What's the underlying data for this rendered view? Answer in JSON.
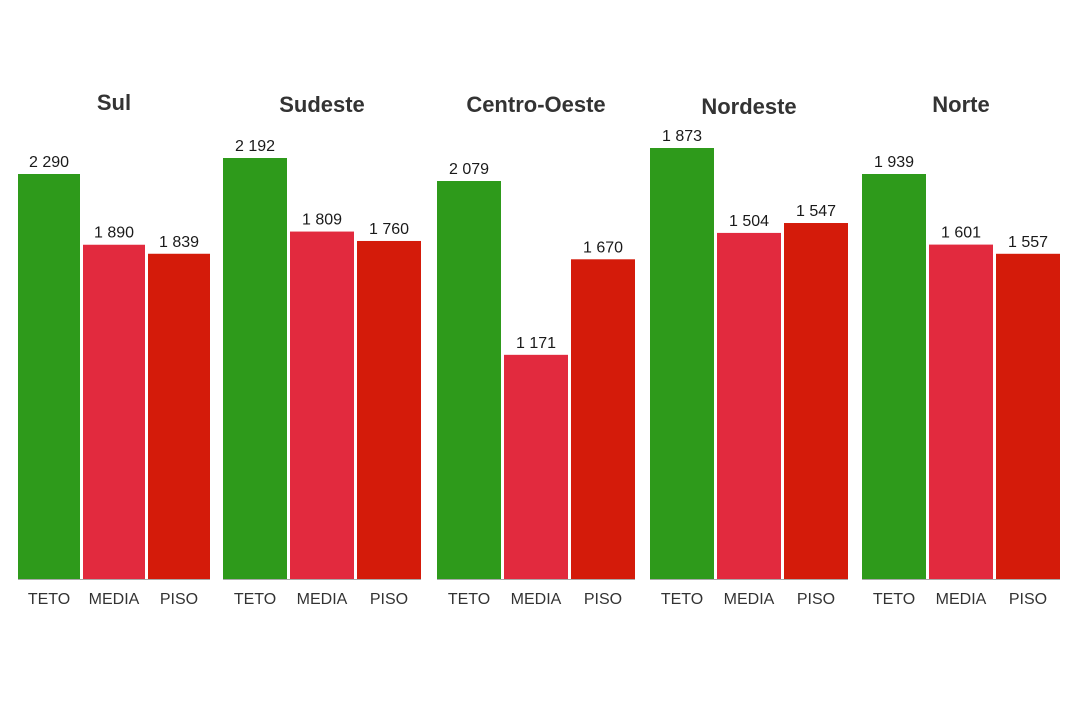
{
  "chart_data": {
    "type": "bar",
    "colors": {
      "TETO": "#2e9a1b",
      "MEDIA": "#e22a3e",
      "PISO": "#d41b0a",
      "baseline": "#aaaaaa"
    },
    "categories": [
      "TETO",
      "MEDIA",
      "PISO"
    ],
    "panels": [
      {
        "title": "Sul",
        "values": [
          2290,
          1890,
          1839
        ],
        "labels": [
          "2 290",
          "1 890",
          "1 839"
        ]
      },
      {
        "title": "Sudeste",
        "values": [
          2192,
          1809,
          1760
        ],
        "labels": [
          "2 192",
          "1 809",
          "1 760"
        ]
      },
      {
        "title": "Centro-Oeste",
        "values": [
          2079,
          1171,
          1670
        ],
        "labels": [
          "2 079",
          "1 171",
          "1 670"
        ]
      },
      {
        "title": "Nordeste",
        "values": [
          1873,
          1504,
          1547
        ],
        "labels": [
          "1 873",
          "1 504",
          "1 547"
        ]
      },
      {
        "title": "Norte",
        "values": [
          1939,
          1601,
          1557
        ],
        "labels": [
          "1 939",
          "1 601",
          "1 557"
        ]
      }
    ]
  }
}
